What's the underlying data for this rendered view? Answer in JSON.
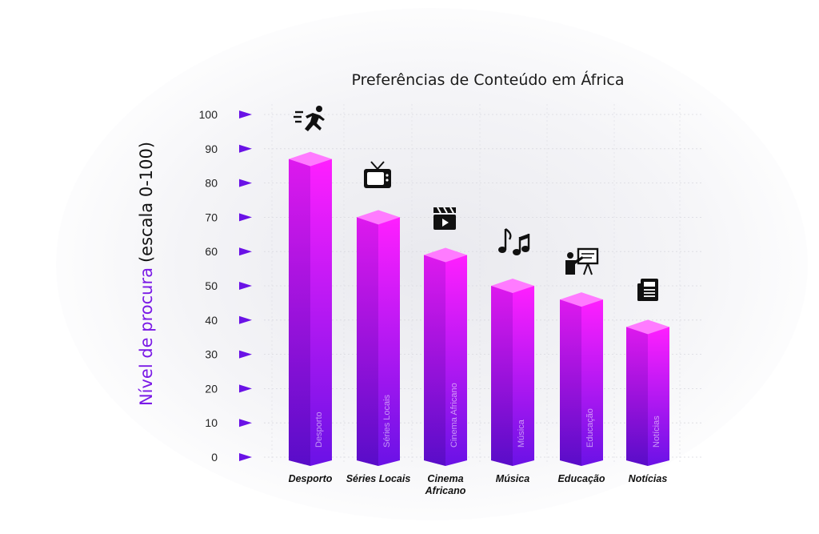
{
  "chart_data": {
    "type": "bar",
    "title": "Preferências de Conteúdo em África",
    "ylabel_accent": "Nível de procura",
    "ylabel_rest": "(escala 0-100)",
    "ylabel": "Nível de procura (escala 0-100)",
    "ylim": [
      0,
      100
    ],
    "yticks": [
      "0",
      "10",
      "20",
      "30",
      "40",
      "50",
      "60",
      "70",
      "80",
      "90",
      "100"
    ],
    "grid": true,
    "categories": [
      "Desporto",
      "Séries Locais",
      "Cinema Africano",
      "Música",
      "Educação",
      "Notícias"
    ],
    "category_labels": [
      [
        "Desporto"
      ],
      [
        "Séries Locais"
      ],
      [
        "Cinema",
        "Africano"
      ],
      [
        "Música"
      ],
      [
        "Educação"
      ],
      [
        "Notícias"
      ]
    ],
    "values": [
      87,
      70,
      59,
      50,
      46,
      38
    ],
    "icons": [
      "running-person-icon",
      "tv-icon",
      "clapperboard-icon",
      "music-notes-icon",
      "teacher-board-icon",
      "newspaper-icon"
    ],
    "colors": {
      "bar_top": "#ff1fff",
      "bar_bottom": "#6a12e6",
      "bar_side_top": "#c214e0",
      "bar_side_bottom": "#4a08b0",
      "bar_cap": "#ff7bff",
      "accent": "#7a19e6",
      "tick_marker": "#6a12e6"
    }
  }
}
